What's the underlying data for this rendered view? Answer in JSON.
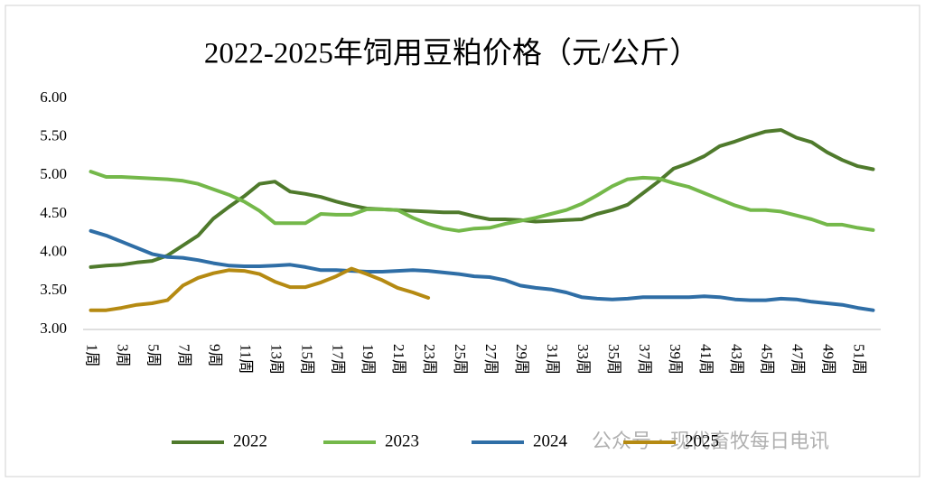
{
  "chart_data": {
    "type": "line",
    "title": "2022-2025年饲用豆粕价格（元/公斤）",
    "categories": [
      "1周",
      null,
      "3周",
      null,
      "5周",
      null,
      "7周",
      null,
      "9周",
      null,
      "11周",
      null,
      "13周",
      null,
      "15周",
      null,
      "17周",
      null,
      "19周",
      null,
      "21周",
      null,
      "23周",
      null,
      "25周",
      null,
      "27周",
      null,
      "29周",
      null,
      "31周",
      null,
      "33周",
      null,
      "35周",
      null,
      "37周",
      null,
      "39周",
      null,
      "41周",
      null,
      "43周",
      null,
      "45周",
      null,
      "47周",
      null,
      "49周",
      null,
      "51周",
      null
    ],
    "series": [
      {
        "name": "2022",
        "color": "#4f7a2c",
        "values": [
          3.81,
          3.83,
          3.84,
          3.87,
          3.89,
          3.96,
          4.09,
          4.22,
          4.44,
          4.59,
          4.73,
          4.89,
          4.92,
          4.79,
          4.76,
          4.72,
          4.66,
          4.61,
          4.57,
          4.56,
          4.55,
          4.54,
          4.53,
          4.52,
          4.52,
          4.47,
          4.43,
          4.43,
          4.42,
          4.4,
          4.41,
          4.42,
          4.43,
          4.5,
          4.55,
          4.62,
          4.77,
          4.92,
          5.09,
          5.16,
          5.25,
          5.38,
          5.44,
          5.51,
          5.57,
          5.59,
          5.49,
          5.43,
          5.3,
          5.2,
          5.12,
          5.08
        ]
      },
      {
        "name": "2023",
        "color": "#74b84a",
        "values": [
          5.05,
          4.98,
          4.98,
          4.97,
          4.96,
          4.95,
          4.93,
          4.89,
          4.82,
          4.75,
          4.66,
          4.54,
          4.38,
          4.38,
          4.38,
          4.5,
          4.49,
          4.49,
          4.56,
          4.56,
          4.55,
          4.45,
          4.37,
          4.31,
          4.28,
          4.31,
          4.32,
          4.37,
          4.41,
          4.45,
          4.5,
          4.55,
          4.63,
          4.74,
          4.86,
          4.95,
          4.97,
          4.96,
          4.9,
          4.85,
          4.77,
          4.69,
          4.61,
          4.55,
          4.55,
          4.53,
          4.48,
          4.43,
          4.36,
          4.36,
          4.32,
          4.29
        ]
      },
      {
        "name": "2024",
        "color": "#2f6ea6",
        "values": [
          4.28,
          4.22,
          4.14,
          4.06,
          3.98,
          3.94,
          3.93,
          3.9,
          3.86,
          3.83,
          3.82,
          3.82,
          3.83,
          3.84,
          3.81,
          3.77,
          3.77,
          3.76,
          3.75,
          3.75,
          3.76,
          3.77,
          3.76,
          3.74,
          3.72,
          3.69,
          3.68,
          3.64,
          3.57,
          3.54,
          3.52,
          3.48,
          3.42,
          3.4,
          3.39,
          3.4,
          3.42,
          3.42,
          3.42,
          3.42,
          3.43,
          3.42,
          3.39,
          3.38,
          3.38,
          3.4,
          3.39,
          3.36,
          3.34,
          3.32,
          3.28,
          3.25
        ]
      },
      {
        "name": "2025",
        "color": "#b58a12",
        "values": [
          3.25,
          3.25,
          3.28,
          3.32,
          3.34,
          3.38,
          3.57,
          3.67,
          3.73,
          3.77,
          3.76,
          3.72,
          3.62,
          3.55,
          3.55,
          3.61,
          3.69,
          3.79,
          3.72,
          3.64,
          3.54,
          3.48,
          3.41,
          null,
          null,
          null,
          null,
          null,
          null,
          null,
          null,
          null,
          null,
          null,
          null,
          null,
          null,
          null,
          null,
          null,
          null,
          null,
          null,
          null,
          null,
          null,
          null,
          null,
          null,
          null,
          null,
          null
        ]
      }
    ],
    "ylim": [
      3,
      6
    ],
    "yticks": [
      {
        "value": 3,
        "label": "3.00"
      },
      {
        "value": 3.5,
        "label": "3.50"
      },
      {
        "value": 4,
        "label": "4.00"
      },
      {
        "value": 4.5,
        "label": "4.50"
      },
      {
        "value": 5,
        "label": "5.00"
      },
      {
        "value": 5.5,
        "label": "5.50"
      },
      {
        "value": 6,
        "label": "6.00"
      }
    ],
    "grid": false,
    "legend": "bottom",
    "watermark": "公众号 · 现代畜牧每日电讯"
  }
}
